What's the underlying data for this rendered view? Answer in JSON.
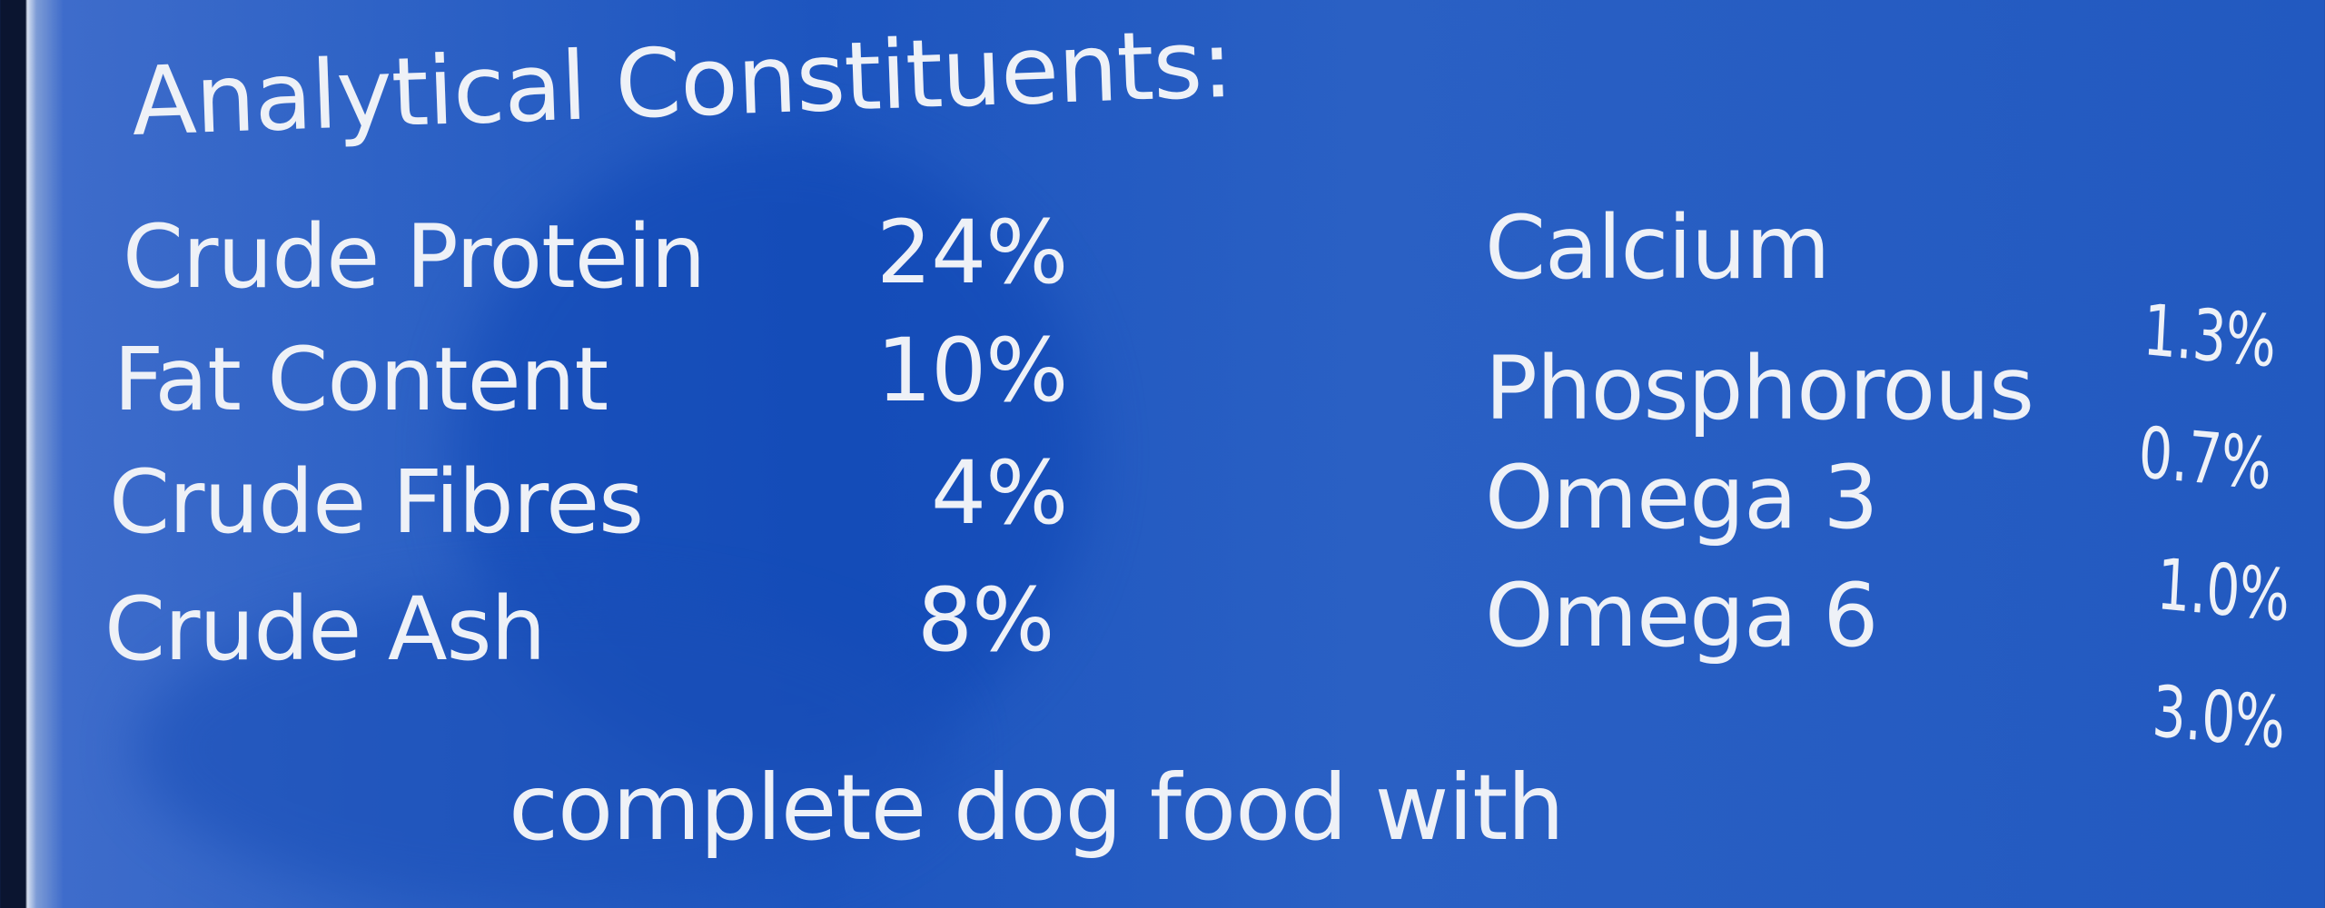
{
  "heading": "Analytical Constituents:",
  "left_column": [
    {
      "label": "Crude Protein",
      "value": "24%"
    },
    {
      "label": "Fat Content",
      "value": "10%"
    },
    {
      "label": "Crude Fibres",
      "value": "4%"
    },
    {
      "label": "Crude Ash",
      "value": "8%"
    }
  ],
  "right_column": [
    {
      "label": "Calcium",
      "value": "1.3%"
    },
    {
      "label": "Phosphorous",
      "value": "0.7%"
    },
    {
      "label": "Omega 3",
      "value": "1.0%"
    },
    {
      "label": "Omega 6",
      "value": "3.0%"
    }
  ],
  "bottom_text": "complete dog food with",
  "colors": {
    "background": "#2459c0",
    "text": "#eef1f7"
  }
}
